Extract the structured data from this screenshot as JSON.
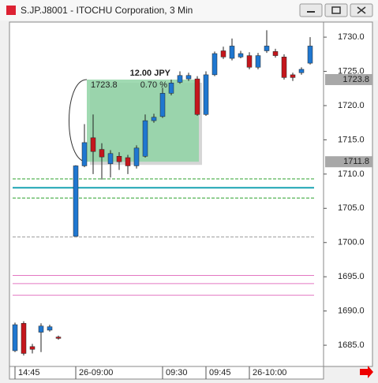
{
  "chart_data": {
    "type": "candlestick",
    "window_title": "S.JP.J8001 - ITOCHU Corporation, 3 Min",
    "categories": [
      "14:45",
      null,
      null,
      null,
      null,
      null,
      null,
      "26-09:00",
      null,
      null,
      null,
      null,
      null,
      null,
      null,
      null,
      null,
      "09:30",
      null,
      null,
      null,
      null,
      "09:45",
      null,
      null,
      null,
      null,
      "26-10:00",
      null,
      null,
      null,
      null,
      null,
      null,
      null
    ],
    "open": [
      1684.2,
      1688.2,
      1684.8,
      1686.9,
      1687.2,
      1686.2,
      null,
      1700.9,
      1711.2,
      1715.3,
      1713.6,
      1711.5,
      1712.6,
      1712.4,
      1711.2,
      1712.6,
      1717.8,
      1718.4,
      1721.8,
      1723.4,
      1723.9,
      1723.9,
      1718.7,
      1724.5,
      1728.0,
      1726.9,
      1727.1,
      1727.3,
      1725.6,
      1728.0,
      1727.9,
      1727.1,
      1724.5,
      1724.8,
      1726.2
    ],
    "high": [
      1688.3,
      1688.5,
      1685.2,
      1688.2,
      1688.0,
      1686.4,
      null,
      1711.3,
      1717.3,
      1718.7,
      1714.5,
      1713.5,
      1713.2,
      1712.8,
      1714.2,
      1718.7,
      1718.8,
      1722.6,
      1723.8,
      1725.0,
      1724.8,
      1724.3,
      1725.0,
      1727.9,
      1728.6,
      1729.8,
      1728.0,
      1727.8,
      1727.7,
      1731.0,
      1728.3,
      1727.5,
      1724.8,
      1725.6,
      1730.0
    ],
    "low": [
      1684.0,
      1683.5,
      1683.8,
      1684.0,
      1687.0,
      1685.8,
      null,
      1700.9,
      1711.0,
      1710.0,
      1709.2,
      1709.5,
      1710.6,
      1710.0,
      1710.8,
      1712.4,
      1717.5,
      1718.2,
      1721.5,
      1723.2,
      1723.6,
      1718.5,
      1718.5,
      1724.3,
      1726.8,
      1726.6,
      1726.9,
      1725.3,
      1725.3,
      1727.7,
      1727.0,
      1723.8,
      1723.6,
      1724.5,
      1726.0
    ],
    "close": [
      1688.0,
      1683.8,
      1684.4,
      1687.8,
      1687.7,
      1686.0,
      null,
      1711.2,
      1714.6,
      1713.3,
      1712.5,
      1713.0,
      1711.8,
      1711.2,
      1713.8,
      1717.8,
      1718.3,
      1721.8,
      1723.3,
      1724.4,
      1724.4,
      1718.7,
      1724.5,
      1727.6,
      1727.1,
      1728.7,
      1727.6,
      1725.6,
      1727.3,
      1728.7,
      1727.3,
      1724.1,
      1724.1,
      1725.3,
      1728.7
    ],
    "up_color": "#1f77d0",
    "down_color": "#c4161c",
    "ylim": [
      1681.9,
      1732.2
    ],
    "yticks": [
      {
        "value": 1685,
        "label": "1685.0"
      },
      {
        "value": 1690,
        "label": "1690.0"
      },
      {
        "value": 1695,
        "label": "1695.0"
      },
      {
        "value": 1700,
        "label": "1700.0"
      },
      {
        "value": 1705,
        "label": "1705.0"
      },
      {
        "value": 1710,
        "label": "1710.0"
      },
      {
        "value": 1715,
        "label": "1715.0"
      },
      {
        "value": 1720,
        "label": "1720.0"
      },
      {
        "value": 1725,
        "label": "1725.0"
      },
      {
        "value": 1730,
        "label": "1730.0"
      }
    ],
    "levels": [
      {
        "value": 1709.3,
        "color": "#2ca02c",
        "dash": true
      },
      {
        "value": 1708.0,
        "color": "#1aa3b3",
        "dash": false
      },
      {
        "value": 1706.5,
        "color": "#2ca02c",
        "dash": true
      },
      {
        "value": 1700.8,
        "color": "#999999",
        "dash": true
      },
      {
        "value": 1695.2,
        "color": "#e377c2",
        "dash": false
      },
      {
        "value": 1694.0,
        "color": "#e377c2",
        "dash": false
      },
      {
        "value": 1692.3,
        "color": "#e377c2",
        "dash": false
      }
    ],
    "price_labels": [
      1723.8,
      1711.8
    ],
    "measure": {
      "from": 1711.8,
      "to": 1723.8,
      "change_label": "12.00 JPY",
      "price_label": "1723.8",
      "percent_label": "0.70 %"
    }
  }
}
